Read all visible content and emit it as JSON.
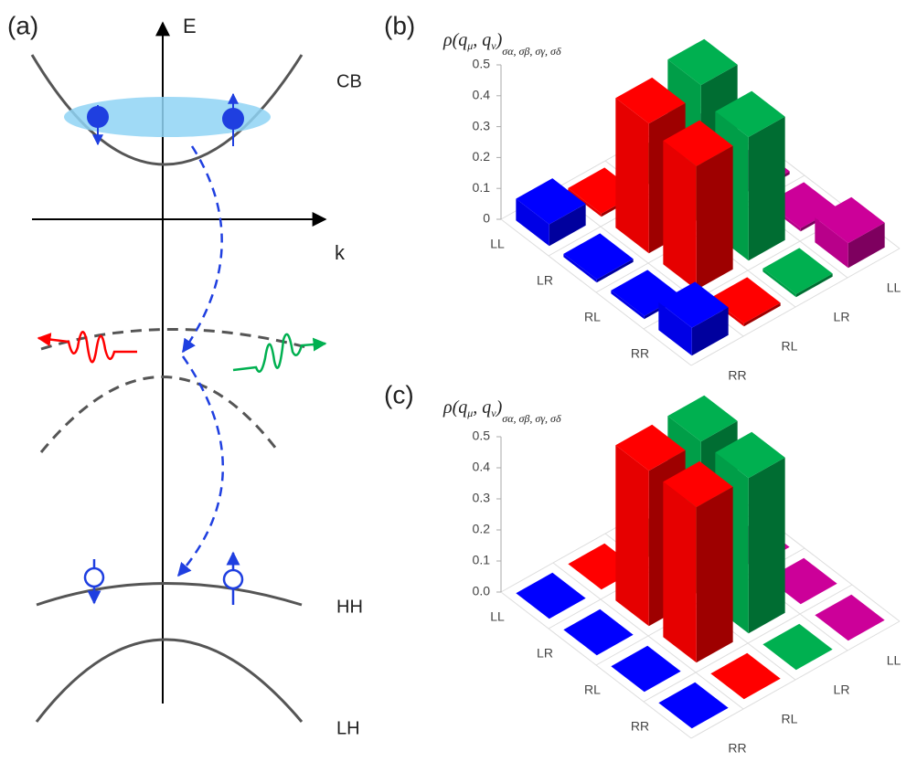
{
  "diagram": {
    "panel_label": "(a)",
    "energy_axis": "E",
    "momentum_axis": "k",
    "bands": [
      "CB",
      "HH",
      "LH"
    ]
  },
  "chart_data": [
    {
      "type": "bar3d",
      "panel_label": "(b)",
      "title": [
        "ρ(q",
        "μ",
        ", q",
        "ν",
        ")",
        "σα, σβ, σγ, σδ"
      ],
      "row_categories": [
        "LL",
        "LR",
        "RL",
        "RR"
      ],
      "column_categories": [
        "LL",
        "LR",
        "RL",
        "RR"
      ],
      "column_colors": [
        "#cc0099",
        "#00b050",
        "#ff0000",
        "#0000ff"
      ],
      "values": [
        [
          0.01,
          0.01,
          0.01,
          0.07
        ],
        [
          0.01,
          0.45,
          0.42,
          0.01
        ],
        [
          0.01,
          0.4,
          0.4,
          0.01
        ],
        [
          0.08,
          0.01,
          0.01,
          0.09
        ]
      ],
      "ylim": [
        0,
        0.5
      ],
      "yticks": [
        0,
        0.1,
        0.2,
        0.3,
        0.4,
        0.5
      ]
    },
    {
      "type": "bar3d",
      "panel_label": "(c)",
      "title": [
        "ρ(q",
        "μ",
        ", q",
        "ν",
        ")",
        "σα, σβ, σγ, σδ"
      ],
      "row_categories": [
        "LL",
        "LR",
        "RL",
        "RR"
      ],
      "column_categories": [
        "LL",
        "LR",
        "RL",
        "RR"
      ],
      "column_colors": [
        "#cc0099",
        "#00b050",
        "#ff0000",
        "#0000ff"
      ],
      "values": [
        [
          0,
          0,
          0,
          0
        ],
        [
          0,
          0.5,
          0.5,
          0
        ],
        [
          0,
          0.5,
          0.5,
          0
        ],
        [
          0,
          0,
          0,
          0
        ]
      ],
      "ylim": [
        0,
        0.5
      ],
      "yticks": [
        {
          "value": 0,
          "label": "0.0"
        },
        0.1,
        0.2,
        0.3,
        0.4,
        0.5
      ]
    }
  ]
}
